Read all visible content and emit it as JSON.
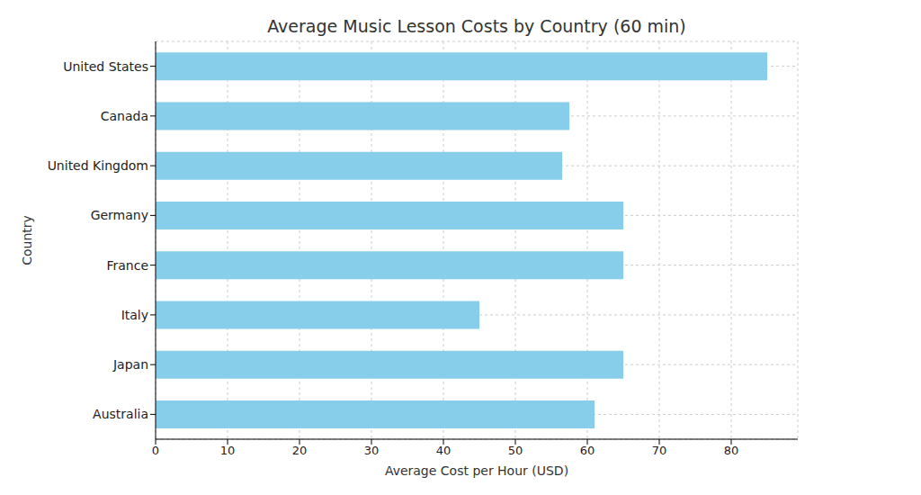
{
  "chart_data": {
    "type": "bar",
    "orientation": "horizontal",
    "title": "Average Music Lesson Costs by Country (60 min)",
    "x_label": "Average Cost per Hour (USD)",
    "y_label": "Country",
    "categories": [
      "United States",
      "Canada",
      "United Kingdom",
      "Germany",
      "France",
      "Italy",
      "Japan",
      "Australia"
    ],
    "values": [
      85,
      57.5,
      56.5,
      65,
      65,
      45,
      65,
      61
    ],
    "color": "#87ceeb",
    "xlim": [
      0,
      89.25
    ],
    "xticks": [
      0,
      10,
      20,
      30,
      40,
      50,
      60,
      70,
      80
    ],
    "grid": true
  }
}
